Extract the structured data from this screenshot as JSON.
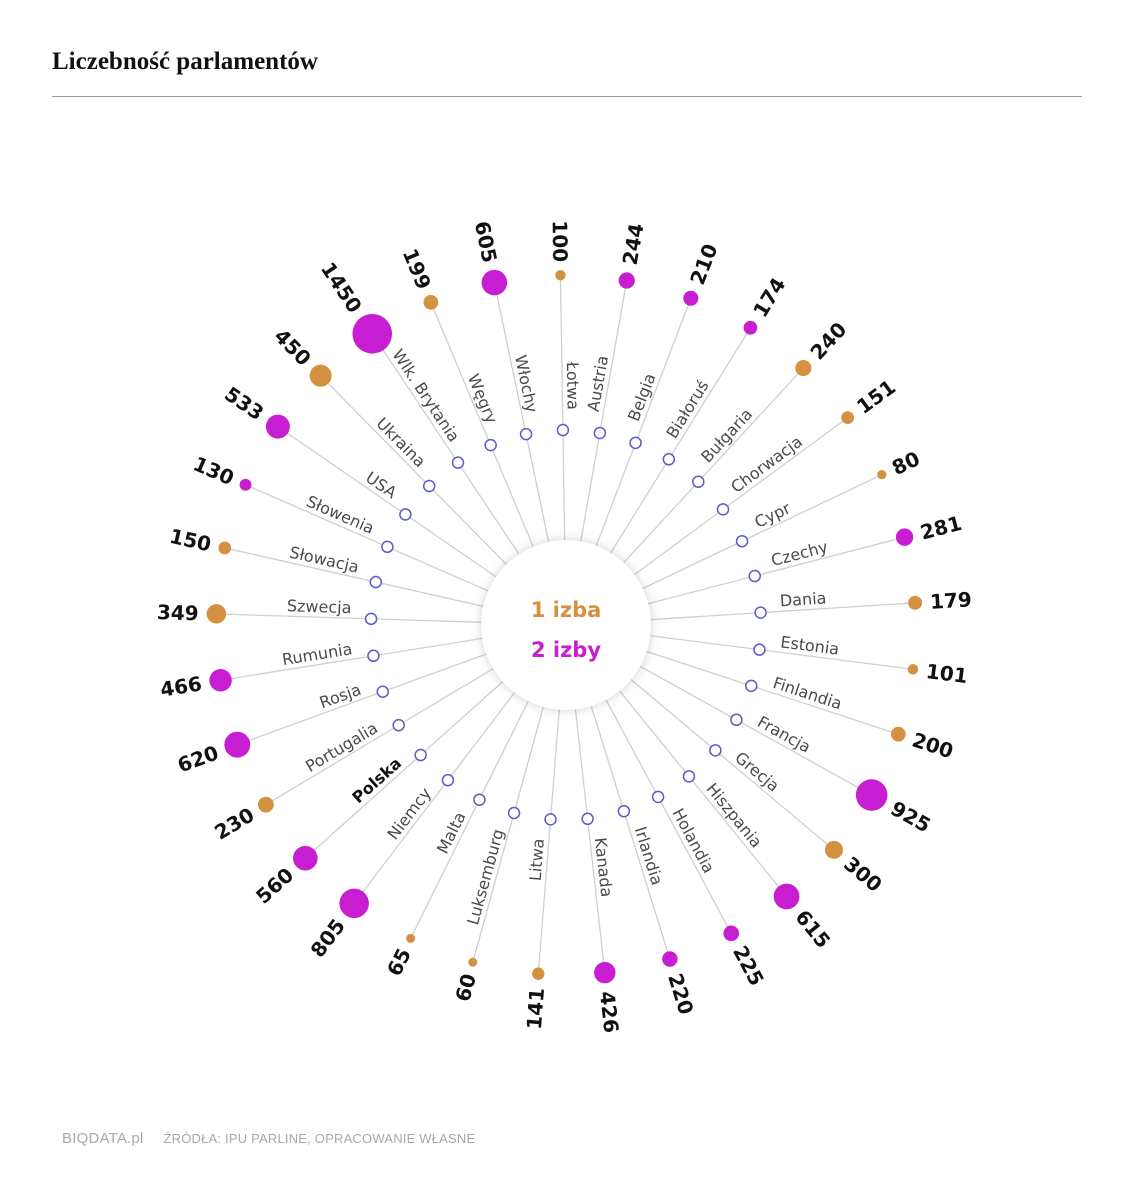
{
  "title": "Liczebność parlamentów",
  "footer": {
    "brand": "BIQDATA.pl",
    "source": "ŹRÓDŁA: IPU PARLINE, OPRACOWANIE WŁASNE"
  },
  "colors": {
    "one_chamber": "#d4913f",
    "two_chambers": "#c81ed1",
    "ring": "#5c5cc8",
    "line": "#cfcfcf"
  },
  "chart_data": {
    "type": "radial-bubble",
    "title": "Liczebność parlamentów",
    "legend": [
      {
        "label": "1 izba",
        "key": "one_chamber"
      },
      {
        "label": "2 izby",
        "key": "two_chambers"
      }
    ],
    "countries": [
      {
        "name": "Austria",
        "value": 244,
        "chambers": 2
      },
      {
        "name": "Belgia",
        "value": 210,
        "chambers": 2
      },
      {
        "name": "Białoruś",
        "value": 174,
        "chambers": 2
      },
      {
        "name": "Bułgaria",
        "value": 240,
        "chambers": 1
      },
      {
        "name": "Chorwacja",
        "value": 151,
        "chambers": 1
      },
      {
        "name": "Cypr",
        "value": 80,
        "chambers": 1
      },
      {
        "name": "Czechy",
        "value": 281,
        "chambers": 2
      },
      {
        "name": "Dania",
        "value": 179,
        "chambers": 1
      },
      {
        "name": "Estonia",
        "value": 101,
        "chambers": 1
      },
      {
        "name": "Finlandia",
        "value": 200,
        "chambers": 1
      },
      {
        "name": "Francja",
        "value": 925,
        "chambers": 2
      },
      {
        "name": "Grecja",
        "value": 300,
        "chambers": 1
      },
      {
        "name": "Hiszpania",
        "value": 615,
        "chambers": 2
      },
      {
        "name": "Holandia",
        "value": 225,
        "chambers": 2
      },
      {
        "name": "Irlandia",
        "value": 220,
        "chambers": 2
      },
      {
        "name": "Kanada",
        "value": 426,
        "chambers": 2
      },
      {
        "name": "Litwa",
        "value": 141,
        "chambers": 1
      },
      {
        "name": "Luksemburg",
        "value": 60,
        "chambers": 1
      },
      {
        "name": "Malta",
        "value": 65,
        "chambers": 1
      },
      {
        "name": "Niemcy",
        "value": 805,
        "chambers": 2
      },
      {
        "name": "Polska",
        "value": 560,
        "chambers": 2,
        "highlight": true
      },
      {
        "name": "Portugalia",
        "value": 230,
        "chambers": 1
      },
      {
        "name": "Rosja",
        "value": 620,
        "chambers": 2
      },
      {
        "name": "Rumunia",
        "value": 466,
        "chambers": 2
      },
      {
        "name": "Szwecja",
        "value": 349,
        "chambers": 1
      },
      {
        "name": "Słowacja",
        "value": 150,
        "chambers": 1
      },
      {
        "name": "Słowenia",
        "value": 130,
        "chambers": 2
      },
      {
        "name": "USA",
        "value": 533,
        "chambers": 2
      },
      {
        "name": "Ukraina",
        "value": 450,
        "chambers": 1
      },
      {
        "name": "Wlk. Brytania",
        "value": 1450,
        "chambers": 2
      },
      {
        "name": "Węgry",
        "value": 199,
        "chambers": 1
      },
      {
        "name": "Włochy",
        "value": 605,
        "chambers": 2
      },
      {
        "name": "Łotwa",
        "value": 100,
        "chambers": 1
      }
    ]
  }
}
